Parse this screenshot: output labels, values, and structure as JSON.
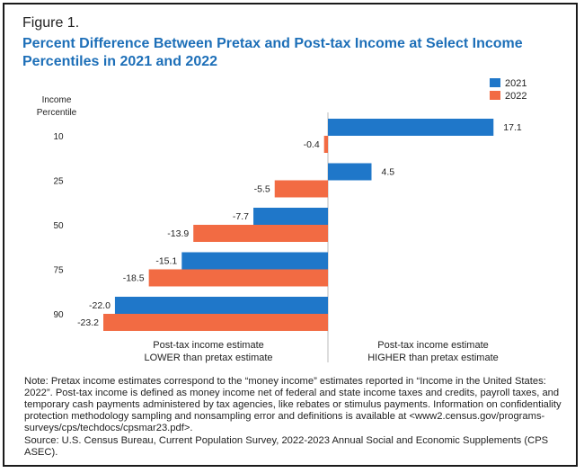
{
  "figure_label": "Figure 1.",
  "title": "Percent Difference Between Pretax and Post-tax Income at Select Income Percentiles in 2021 and 2022",
  "colors": {
    "2021": "#1f77c9",
    "2022": "#f26b43",
    "text": "#222222",
    "axis": "#bbbbbb"
  },
  "chart_data": {
    "type": "bar",
    "orientation": "horizontal",
    "row_header": [
      "Income",
      "Percentile"
    ],
    "categories": [
      "10",
      "25",
      "50",
      "75",
      "90"
    ],
    "series": [
      {
        "name": "2021",
        "values": [
          17.1,
          4.5,
          -7.7,
          -15.1,
          -22.0
        ],
        "labels": [
          "17.1",
          "4.5",
          "-7.7",
          "-15.1",
          "-22.0"
        ]
      },
      {
        "name": "2022",
        "values": [
          -0.4,
          -5.5,
          -13.9,
          -18.5,
          -23.2
        ],
        "labels": [
          "-0.4",
          "-5.5",
          "-13.9",
          "-18.5",
          "-23.2"
        ]
      }
    ],
    "xlim": [
      -23.2,
      17.1
    ],
    "legend_position": "top-right",
    "annotations": {
      "left": [
        "Post-tax income estimate",
        "LOWER than pretax estimate"
      ],
      "right": [
        "Post-tax income estimate",
        "HIGHER than pretax estimate"
      ]
    }
  },
  "note": "Note: Pretax income estimates correspond to the “money income” estimates reported in “Income in the United States: 2022”. Post-tax income is defined as money income net of federal and state income taxes and credits, payroll taxes, and temporary cash payments administered by tax agencies, like rebates or stimulus payments. Information on confidentiality protection methodology sampling and nonsampling error and definitions is available at <www2.census.gov/programs-surveys/cps/techdocs/cpsmar23.pdf>.",
  "source": "Source: U.S. Census Bureau, Current Population Survey, 2022-2023 Annual Social and Economic Supplements (CPS ASEC)."
}
